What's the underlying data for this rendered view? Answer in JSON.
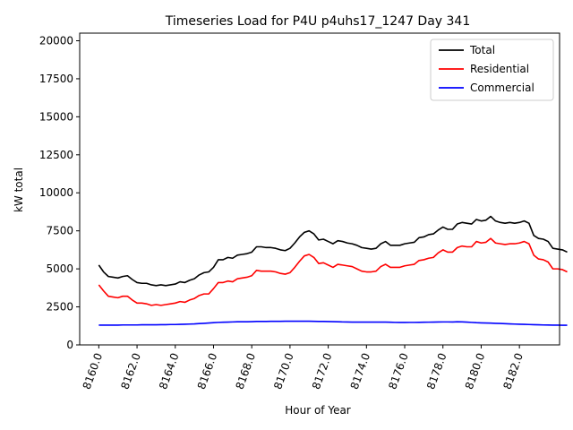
{
  "chart_data": {
    "type": "line",
    "title": "Timeseries Load for P4U p4uhs17_1247  Day 341",
    "xlabel": "Hour of Year",
    "ylabel": "kW total",
    "xlim": [
      8159.0,
      8184.1
    ],
    "ylim": [
      0,
      20500
    ],
    "xticks": [
      8160.0,
      8162.0,
      8164.0,
      8166.0,
      8168.0,
      8170.0,
      8172.0,
      8174.0,
      8176.0,
      8178.0,
      8180.0,
      8182.0
    ],
    "xtick_labels": [
      "8160.0",
      "8162.0",
      "8164.0",
      "8166.0",
      "8168.0",
      "8170.0",
      "8172.0",
      "8174.0",
      "8176.0",
      "8178.0",
      "8180.0",
      "8182.0"
    ],
    "yticks": [
      0,
      2500,
      5000,
      7500,
      10000,
      12500,
      15000,
      17500,
      20000
    ],
    "ytick_labels": [
      "0",
      "2500",
      "5000",
      "7500",
      "10000",
      "12500",
      "15000",
      "17500",
      "20000"
    ],
    "legend_position": "top-right",
    "x_start": 8160.0,
    "x_step": 0.25,
    "series": [
      {
        "name": "Total",
        "color": "#000000",
        "values": [
          5250,
          4800,
          4500,
          4450,
          4400,
          4500,
          4550,
          4300,
          4100,
          4050,
          4050,
          3950,
          3900,
          3950,
          3900,
          3950,
          4000,
          4150,
          4100,
          4250,
          4350,
          4600,
          4750,
          4800,
          5100,
          5600,
          5600,
          5750,
          5700,
          5900,
          5950,
          6000,
          6100,
          6450,
          6450,
          6400,
          6400,
          6350,
          6250,
          6200,
          6350,
          6700,
          7100,
          7400,
          7500,
          7300,
          6900,
          6950,
          6800,
          6650,
          6850,
          6800,
          6700,
          6650,
          6550,
          6400,
          6350,
          6300,
          6350,
          6650,
          6800,
          6550,
          6550,
          6550,
          6650,
          6700,
          6750,
          7050,
          7100,
          7250,
          7300,
          7550,
          7750,
          7600,
          7600,
          7950,
          8050,
          8000,
          7950,
          8250,
          8150,
          8200,
          8450,
          8150,
          8050,
          8000,
          8050,
          8000,
          8050,
          8150,
          8000,
          7200,
          7000,
          6950,
          6800,
          6350,
          6300,
          6250,
          6100
        ]
      },
      {
        "name": "Residential",
        "color": "#ff0000",
        "values": [
          3950,
          3550,
          3200,
          3150,
          3100,
          3200,
          3200,
          2950,
          2750,
          2750,
          2700,
          2600,
          2650,
          2600,
          2650,
          2700,
          2750,
          2850,
          2800,
          2950,
          3050,
          3250,
          3350,
          3350,
          3700,
          4100,
          4100,
          4200,
          4150,
          4350,
          4400,
          4450,
          4550,
          4900,
          4850,
          4850,
          4850,
          4800,
          4700,
          4650,
          4750,
          5100,
          5500,
          5850,
          5950,
          5750,
          5350,
          5400,
          5250,
          5100,
          5300,
          5250,
          5200,
          5150,
          5000,
          4850,
          4800,
          4800,
          4850,
          5150,
          5300,
          5100,
          5100,
          5100,
          5200,
          5250,
          5300,
          5550,
          5600,
          5700,
          5750,
          6050,
          6250,
          6100,
          6100,
          6400,
          6500,
          6450,
          6450,
          6800,
          6700,
          6750,
          7000,
          6700,
          6650,
          6600,
          6650,
          6650,
          6700,
          6800,
          6650,
          5900,
          5650,
          5600,
          5450,
          5000,
          5000,
          4950,
          4800
        ]
      },
      {
        "name": "Commercial",
        "color": "#0000ff",
        "values": [
          1300,
          1300,
          1300,
          1300,
          1300,
          1310,
          1310,
          1310,
          1310,
          1320,
          1320,
          1320,
          1320,
          1330,
          1330,
          1340,
          1340,
          1350,
          1360,
          1370,
          1380,
          1400,
          1420,
          1440,
          1460,
          1480,
          1490,
          1500,
          1510,
          1520,
          1520,
          1520,
          1530,
          1540,
          1540,
          1545,
          1550,
          1550,
          1550,
          1555,
          1555,
          1560,
          1560,
          1560,
          1555,
          1550,
          1545,
          1540,
          1535,
          1530,
          1520,
          1510,
          1505,
          1500,
          1500,
          1500,
          1500,
          1500,
          1500,
          1500,
          1500,
          1490,
          1480,
          1475,
          1475,
          1480,
          1480,
          1485,
          1490,
          1495,
          1500,
          1505,
          1510,
          1510,
          1505,
          1520,
          1515,
          1500,
          1480,
          1460,
          1450,
          1440,
          1430,
          1420,
          1410,
          1395,
          1380,
          1370,
          1360,
          1350,
          1340,
          1330,
          1320,
          1310,
          1305,
          1300,
          1300,
          1295,
          1290
        ]
      }
    ]
  }
}
